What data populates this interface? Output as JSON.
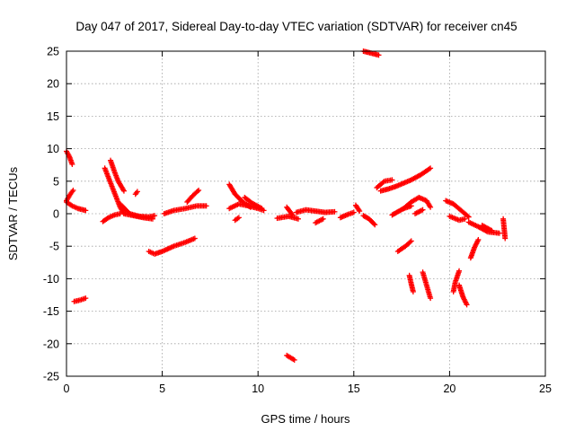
{
  "chart_data": {
    "type": "scatter",
    "title": "Day 047 of 2017, Sidereal Day-to-day VTEC variation (SDTVAR) for receiver cn45",
    "xlabel": "GPS time / hours",
    "ylabel": "SDTVAR / TECUs",
    "xlim": [
      0,
      25
    ],
    "ylim": [
      -25,
      25
    ],
    "xticks": [
      0,
      5,
      10,
      15,
      20,
      25
    ],
    "yticks": [
      -25,
      -20,
      -15,
      -10,
      -5,
      0,
      5,
      10,
      15,
      20,
      25
    ],
    "grid": true,
    "marker": "plus",
    "marker_color": "#ff0000",
    "series_segments": [
      {
        "x": [
          0.0,
          0.15,
          0.3
        ],
        "y": [
          9.6,
          8.8,
          7.6
        ]
      },
      {
        "x": [
          0.0,
          0.2,
          0.35
        ],
        "y": [
          2.0,
          3.0,
          3.6
        ]
      },
      {
        "x": [
          0.0,
          0.3,
          0.6,
          1.0
        ],
        "y": [
          1.8,
          1.2,
          0.8,
          0.5
        ]
      },
      {
        "x": [
          0.4,
          0.7,
          1.0
        ],
        "y": [
          -13.5,
          -13.3,
          -13.0
        ]
      },
      {
        "x": [
          2.0,
          2.2,
          2.4,
          2.6,
          2.8,
          3.0
        ],
        "y": [
          7.0,
          5.5,
          4.0,
          2.5,
          1.0,
          0.0
        ]
      },
      {
        "x": [
          2.3,
          2.5,
          2.7,
          3.0
        ],
        "y": [
          8.2,
          6.5,
          5.0,
          3.5
        ]
      },
      {
        "x": [
          1.9,
          2.2,
          2.5,
          2.8
        ],
        "y": [
          -1.2,
          -0.6,
          -0.2,
          0.0
        ]
      },
      {
        "x": [
          2.8,
          3.3,
          3.8,
          4.3,
          4.6
        ],
        "y": [
          1.5,
          0.0,
          -0.4,
          -0.5,
          -0.3
        ]
      },
      {
        "x": [
          3.0,
          3.5,
          4.0,
          4.5
        ],
        "y": [
          0.0,
          -0.3,
          -0.6,
          -0.8
        ]
      },
      {
        "x": [
          3.6,
          3.7
        ],
        "y": [
          3.0,
          3.4
        ]
      },
      {
        "x": [
          4.3,
          4.6,
          5.0,
          5.6,
          6.2,
          6.7
        ],
        "y": [
          -5.8,
          -6.2,
          -5.8,
          -5.0,
          -4.4,
          -3.8
        ]
      },
      {
        "x": [
          5.1,
          5.6,
          6.2,
          6.8,
          7.3
        ],
        "y": [
          0.0,
          0.5,
          0.8,
          1.2,
          1.2
        ]
      },
      {
        "x": [
          6.3,
          6.6,
          6.9
        ],
        "y": [
          1.8,
          2.8,
          3.6
        ]
      },
      {
        "x": [
          8.5,
          8.8,
          9.2,
          9.6
        ],
        "y": [
          4.5,
          3.0,
          1.8,
          1.0
        ]
      },
      {
        "x": [
          8.5,
          9.0,
          9.5,
          10.0,
          10.3
        ],
        "y": [
          0.8,
          1.5,
          1.2,
          0.8,
          0.5
        ]
      },
      {
        "x": [
          9.3,
          9.7,
          10.2
        ],
        "y": [
          2.5,
          1.6,
          0.8
        ]
      },
      {
        "x": [
          8.8,
          9.0
        ],
        "y": [
          -1.0,
          -0.6
        ]
      },
      {
        "x": [
          11.0,
          11.6,
          12.1
        ],
        "y": [
          -0.7,
          -0.4,
          -0.8
        ]
      },
      {
        "x": [
          11.5,
          11.8
        ],
        "y": [
          1.0,
          -0.2
        ]
      },
      {
        "x": [
          12.0,
          12.5,
          13.0,
          13.5,
          14.0
        ],
        "y": [
          0.2,
          0.6,
          0.4,
          0.2,
          0.3
        ]
      },
      {
        "x": [
          13.0,
          13.4
        ],
        "y": [
          -1.4,
          -0.8
        ]
      },
      {
        "x": [
          11.5,
          11.9
        ],
        "y": [
          -21.8,
          -22.5
        ]
      },
      {
        "x": [
          14.3,
          14.7,
          15.0
        ],
        "y": [
          -0.6,
          -0.1,
          0.2
        ]
      },
      {
        "x": [
          15.1,
          15.3
        ],
        "y": [
          1.3,
          0.4
        ]
      },
      {
        "x": [
          15.5,
          15.8,
          16.1
        ],
        "y": [
          -0.3,
          -0.8,
          -1.7
        ]
      },
      {
        "x": [
          15.5,
          15.9,
          16.3
        ],
        "y": [
          25.0,
          24.7,
          24.4
        ]
      },
      {
        "x": [
          16.4,
          16.8,
          17.2,
          17.6,
          18.0,
          18.5,
          19.0
        ],
        "y": [
          3.5,
          3.8,
          4.2,
          4.7,
          5.2,
          6.0,
          7.0
        ]
      },
      {
        "x": [
          16.2,
          16.6,
          17.0
        ],
        "y": [
          4.0,
          5.0,
          5.2
        ]
      },
      {
        "x": [
          17.0,
          17.3,
          17.6,
          18.0
        ],
        "y": [
          -0.2,
          0.3,
          0.8,
          1.2
        ]
      },
      {
        "x": [
          17.6,
          18.0,
          18.4,
          18.8,
          19.0
        ],
        "y": [
          0.8,
          1.8,
          2.5,
          2.0,
          1.0
        ]
      },
      {
        "x": [
          18.2,
          18.6
        ],
        "y": [
          0.0,
          0.6
        ]
      },
      {
        "x": [
          17.3,
          17.7,
          18.0
        ],
        "y": [
          -5.8,
          -5.0,
          -4.2
        ]
      },
      {
        "x": [
          17.9,
          18.0,
          18.1
        ],
        "y": [
          -9.5,
          -10.8,
          -12.0
        ]
      },
      {
        "x": [
          18.6,
          18.8,
          19.0
        ],
        "y": [
          -9.0,
          -11.0,
          -13.0
        ]
      },
      {
        "x": [
          19.8,
          20.2,
          20.6,
          21.0
        ],
        "y": [
          2.0,
          1.5,
          0.5,
          -0.5
        ]
      },
      {
        "x": [
          20.0,
          20.5,
          20.8
        ],
        "y": [
          -0.4,
          -1.0,
          -0.8
        ]
      },
      {
        "x": [
          20.2,
          20.3,
          20.5
        ],
        "y": [
          -12.0,
          -10.5,
          -8.8
        ]
      },
      {
        "x": [
          20.5,
          20.7,
          20.9
        ],
        "y": [
          -11.0,
          -12.8,
          -14.0
        ]
      },
      {
        "x": [
          21.1,
          21.3,
          21.5
        ],
        "y": [
          -6.8,
          -5.2,
          -4.0
        ]
      },
      {
        "x": [
          21.0,
          21.5,
          22.0,
          22.6
        ],
        "y": [
          -1.3,
          -2.0,
          -2.8,
          -3.0
        ]
      },
      {
        "x": [
          21.7,
          22.2
        ],
        "y": [
          -1.8,
          -2.6
        ]
      },
      {
        "x": [
          22.8,
          22.9
        ],
        "y": [
          -0.8,
          -3.8
        ]
      }
    ]
  }
}
